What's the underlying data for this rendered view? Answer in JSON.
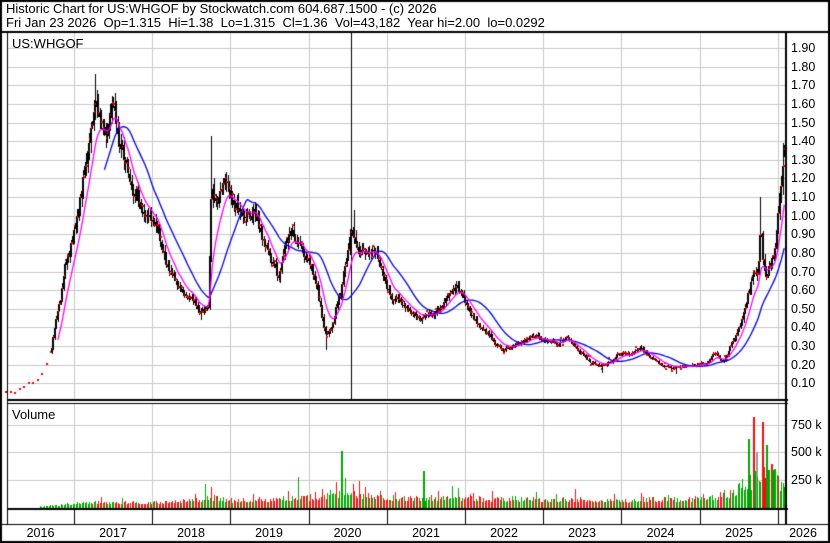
{
  "header": {
    "line1": "Historic Chart for US:WHGOF by Stockwatch.com 604.687.1500 - (c) 2026",
    "line2": "Fri Jan 23 2026  Op=1.315  Hi=1.38  Lo=1.315  Cl=1.36  Vol=43,182  Year hi=2.00  lo=0.0292"
  },
  "price_pane": {
    "label": "US:WHGOF"
  },
  "volume_pane": {
    "label": "Volume"
  },
  "axes": {
    "price_ticks": [
      "1.90",
      "1.80",
      "1.70",
      "1.60",
      "1.50",
      "1.40",
      "1.30",
      "1.20",
      "1.10",
      "1.00",
      "0.90",
      "0.80",
      "0.70",
      "0.60",
      "0.50",
      "0.40",
      "0.30",
      "0.20",
      "0.10"
    ],
    "volume_ticks": [
      {
        "label": "750 k",
        "value": 750
      },
      {
        "label": "500 k",
        "value": 500
      },
      {
        "label": "250 k",
        "value": 250
      }
    ],
    "year_labels": [
      "2016",
      "2017",
      "2018",
      "2019",
      "2020",
      "2021",
      "2022",
      "2023",
      "2024",
      "2025",
      "2026"
    ]
  },
  "colors": {
    "candle": "#000000",
    "close_dot": "#ff0000",
    "ma_fast": "#ff00ff",
    "ma_slow": "#0000dd",
    "vol_up": "#00a500",
    "vol_down": "#ee1111",
    "vol_neutral": "#999999",
    "grid": "#c9c9c9",
    "border": "#000000",
    "background": "#ffffff"
  },
  "chart_data": {
    "type": "candlestick+volume",
    "symbol": "US:WHGOF",
    "frequency": "weekly",
    "x_range_years": [
      2016.1,
      2026.08
    ],
    "price_axis": {
      "min": 0.1,
      "max": 1.9,
      "step": 0.1
    },
    "volume_axis_k": [
      250,
      500,
      750
    ],
    "legend": {
      "ma_fast": "short moving average (magenta)",
      "ma_slow": "long moving average (blue)",
      "dots": "weekly closes (red)"
    },
    "marker_vline_year": 2020.54,
    "last_bar": {
      "date": "Fri Jan 23 2026",
      "open": 1.315,
      "high": 1.38,
      "low": 1.315,
      "close": 1.36,
      "volume_k": 43.182
    },
    "close_path": [
      [
        2016.12,
        0.05
      ],
      [
        2016.3,
        0.05
      ],
      [
        2016.45,
        0.09
      ],
      [
        2016.55,
        0.13
      ],
      [
        2016.65,
        0.22
      ],
      [
        2016.72,
        0.3
      ],
      [
        2016.78,
        0.48
      ],
      [
        2016.84,
        0.58
      ],
      [
        2016.9,
        0.75
      ],
      [
        2016.97,
        0.86
      ],
      [
        2017.05,
        0.95
      ],
      [
        2017.12,
        1.18
      ],
      [
        2017.2,
        1.38
      ],
      [
        2017.28,
        1.62
      ],
      [
        2017.33,
        1.55
      ],
      [
        2017.42,
        1.33
      ],
      [
        2017.5,
        1.52
      ],
      [
        2017.58,
        1.4
      ],
      [
        2017.7,
        1.25
      ],
      [
        2017.82,
        1.12
      ],
      [
        2017.95,
        1.0
      ],
      [
        2018.05,
        0.95
      ],
      [
        2018.2,
        0.7
      ],
      [
        2018.35,
        0.62
      ],
      [
        2018.5,
        0.55
      ],
      [
        2018.62,
        0.48
      ],
      [
        2018.72,
        0.5
      ],
      [
        2018.76,
        1.15
      ],
      [
        2018.82,
        1.08
      ],
      [
        2018.95,
        1.18
      ],
      [
        2019.05,
        1.1
      ],
      [
        2019.2,
        1.02
      ],
      [
        2019.32,
        1.0
      ],
      [
        2019.45,
        0.85
      ],
      [
        2019.55,
        0.75
      ],
      [
        2019.62,
        0.65
      ],
      [
        2019.72,
        0.85
      ],
      [
        2019.8,
        0.88
      ],
      [
        2019.92,
        0.8
      ],
      [
        2020.0,
        0.75
      ],
      [
        2020.1,
        0.65
      ],
      [
        2020.22,
        0.36
      ],
      [
        2020.3,
        0.4
      ],
      [
        2020.42,
        0.62
      ],
      [
        2020.52,
        0.88
      ],
      [
        2020.58,
        0.92
      ],
      [
        2020.65,
        0.8
      ],
      [
        2020.75,
        0.82
      ],
      [
        2020.85,
        0.78
      ],
      [
        2020.95,
        0.68
      ],
      [
        2021.05,
        0.58
      ],
      [
        2021.2,
        0.53
      ],
      [
        2021.35,
        0.5
      ],
      [
        2021.5,
        0.45
      ],
      [
        2021.62,
        0.47
      ],
      [
        2021.75,
        0.52
      ],
      [
        2021.85,
        0.62
      ],
      [
        2021.95,
        0.58
      ],
      [
        2022.05,
        0.48
      ],
      [
        2022.2,
        0.4
      ],
      [
        2022.35,
        0.32
      ],
      [
        2022.5,
        0.27
      ],
      [
        2022.62,
        0.3
      ],
      [
        2022.8,
        0.33
      ],
      [
        2022.92,
        0.36
      ],
      [
        2023.05,
        0.32
      ],
      [
        2023.2,
        0.31
      ],
      [
        2023.3,
        0.35
      ],
      [
        2023.45,
        0.28
      ],
      [
        2023.6,
        0.22
      ],
      [
        2023.75,
        0.19
      ],
      [
        2023.88,
        0.22
      ],
      [
        2023.97,
        0.26
      ],
      [
        2024.1,
        0.26
      ],
      [
        2024.25,
        0.3
      ],
      [
        2024.4,
        0.24
      ],
      [
        2024.55,
        0.19
      ],
      [
        2024.7,
        0.18
      ],
      [
        2024.85,
        0.19
      ],
      [
        2025.0,
        0.2
      ],
      [
        2025.1,
        0.21
      ],
      [
        2025.2,
        0.26
      ],
      [
        2025.3,
        0.22
      ],
      [
        2025.42,
        0.32
      ],
      [
        2025.52,
        0.42
      ],
      [
        2025.6,
        0.55
      ],
      [
        2025.68,
        0.72
      ],
      [
        2025.74,
        0.7
      ],
      [
        2025.78,
        0.95
      ],
      [
        2025.82,
        0.7
      ],
      [
        2025.86,
        0.65
      ],
      [
        2025.9,
        0.75
      ],
      [
        2025.94,
        0.8
      ],
      [
        2025.98,
        0.92
      ],
      [
        2026.02,
        1.15
      ],
      [
        2026.05,
        1.25
      ],
      [
        2026.08,
        1.36
      ]
    ],
    "wick_highs": [
      [
        2017.28,
        1.76
      ],
      [
        2018.76,
        1.43
      ],
      [
        2020.58,
        1.03
      ],
      [
        2025.78,
        1.1
      ],
      [
        2026.06,
        1.39
      ]
    ],
    "wick_lows": [
      [
        2018.62,
        0.44
      ],
      [
        2020.22,
        0.28
      ],
      [
        2023.75,
        0.155
      ],
      [
        2024.7,
        0.15
      ]
    ],
    "volume_base_k": [
      [
        2016.12,
        2
      ],
      [
        2016.6,
        4
      ],
      [
        2016.9,
        20
      ],
      [
        2017.1,
        30
      ],
      [
        2017.5,
        35
      ],
      [
        2017.9,
        30
      ],
      [
        2018.2,
        40
      ],
      [
        2018.6,
        60
      ],
      [
        2018.8,
        70
      ],
      [
        2019.1,
        45
      ],
      [
        2019.5,
        55
      ],
      [
        2019.9,
        70
      ],
      [
        2020.2,
        80
      ],
      [
        2020.45,
        110
      ],
      [
        2020.7,
        90
      ],
      [
        2021.0,
        65
      ],
      [
        2021.4,
        70
      ],
      [
        2021.9,
        75
      ],
      [
        2022.3,
        60
      ],
      [
        2022.8,
        55
      ],
      [
        2023.3,
        55
      ],
      [
        2023.8,
        50
      ],
      [
        2024.3,
        55
      ],
      [
        2024.8,
        55
      ],
      [
        2025.1,
        70
      ],
      [
        2025.4,
        100
      ],
      [
        2025.6,
        170
      ],
      [
        2025.75,
        240
      ],
      [
        2025.9,
        230
      ],
      [
        2026.08,
        170
      ]
    ],
    "volume_spikes_k": [
      [
        2017.35,
        90,
        "r"
      ],
      [
        2017.62,
        80,
        "g"
      ],
      [
        2018.55,
        120,
        "r"
      ],
      [
        2018.68,
        205,
        "g"
      ],
      [
        2018.76,
        180,
        "r"
      ],
      [
        2019.3,
        120,
        "r"
      ],
      [
        2019.74,
        150,
        "r"
      ],
      [
        2019.87,
        270,
        "g"
      ],
      [
        2020.18,
        160,
        "r"
      ],
      [
        2020.35,
        230,
        "r"
      ],
      [
        2020.4,
        505,
        "g"
      ],
      [
        2020.46,
        265,
        "g"
      ],
      [
        2020.56,
        210,
        "r"
      ],
      [
        2020.63,
        235,
        "r"
      ],
      [
        2020.72,
        180,
        "r"
      ],
      [
        2020.9,
        150,
        "r"
      ],
      [
        2021.1,
        140,
        "r"
      ],
      [
        2021.47,
        330,
        "g"
      ],
      [
        2021.65,
        150,
        "r"
      ],
      [
        2021.83,
        195,
        "g"
      ],
      [
        2021.9,
        170,
        "g"
      ],
      [
        2022.1,
        130,
        "r"
      ],
      [
        2022.35,
        150,
        "r"
      ],
      [
        2022.9,
        140,
        "g"
      ],
      [
        2023.15,
        120,
        "g"
      ],
      [
        2023.4,
        160,
        "r"
      ],
      [
        2023.9,
        120,
        "r"
      ],
      [
        2024.25,
        130,
        "r"
      ],
      [
        2024.6,
        110,
        "g"
      ],
      [
        2024.95,
        100,
        "r"
      ],
      [
        2025.05,
        120,
        "r"
      ],
      [
        2025.25,
        140,
        "r"
      ],
      [
        2025.38,
        155,
        "r"
      ],
      [
        2025.5,
        200,
        "r"
      ],
      [
        2025.62,
        620,
        "g"
      ],
      [
        2025.68,
        820,
        "r"
      ],
      [
        2025.72,
        500,
        "a"
      ],
      [
        2025.8,
        770,
        "r"
      ],
      [
        2025.85,
        560,
        "g"
      ],
      [
        2025.9,
        390,
        "r"
      ],
      [
        2025.95,
        260,
        "g"
      ],
      [
        2026.0,
        280,
        "r"
      ],
      [
        2026.04,
        230,
        "g"
      ],
      [
        2026.07,
        200,
        "g"
      ]
    ]
  }
}
